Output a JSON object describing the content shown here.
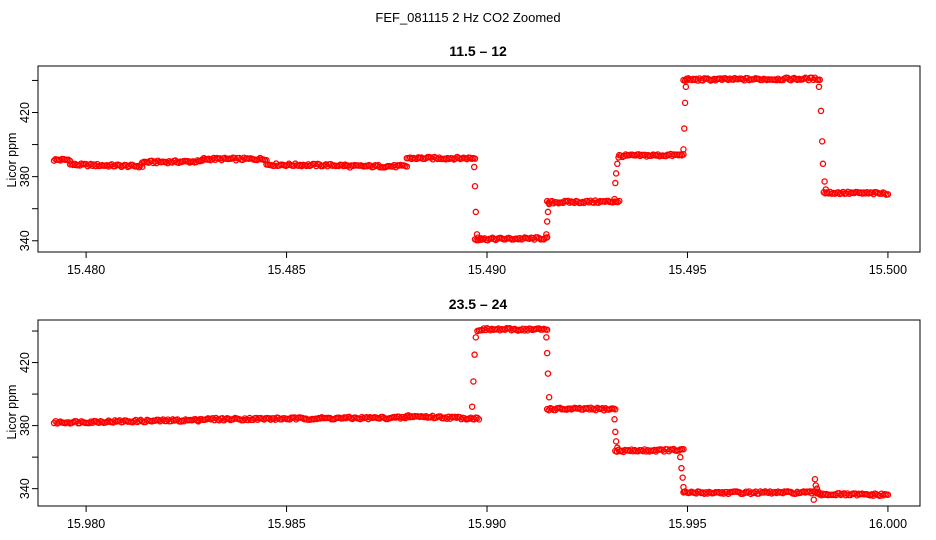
{
  "figure": {
    "title": "FEF_081115  2 Hz CO2 Zoomed"
  },
  "colors": {
    "points": "#ff0000",
    "axes": "#000000",
    "background": "#ffffff"
  },
  "chart_data": [
    {
      "type": "scatter",
      "title": "11.5 – 12",
      "xlabel": "",
      "ylabel": "Licor ppm",
      "xlim": [
        15.4788,
        15.5008
      ],
      "ylim": [
        333,
        449
      ],
      "xticks": [
        15.48,
        15.485,
        15.49,
        15.495,
        15.5
      ],
      "xtick_labels": [
        "15.480",
        "15.485",
        "15.490",
        "15.495",
        "15.500"
      ],
      "yticks": [
        340,
        360,
        380,
        400,
        420,
        440
      ],
      "ytick_labels": [
        "340",
        "",
        "380",
        "",
        "420",
        ""
      ],
      "grid": false,
      "marker": "open-circle",
      "series": [
        {
          "segments": [
            {
              "x": [
                15.4792,
                15.4796
              ],
              "y": [
                390.5,
                390.5
              ]
            },
            {
              "x": [
                15.4796,
                15.4814
              ],
              "y": [
                387.5,
                386.5
              ]
            },
            {
              "x": [
                15.4814,
                15.4829
              ],
              "y": [
                389.0,
                389.5
              ]
            },
            {
              "x": [
                15.4829,
                15.4845
              ],
              "y": [
                391.0,
                391.0
              ]
            },
            {
              "x": [
                15.4845,
                15.4865
              ],
              "y": [
                387.5,
                387.0
              ]
            },
            {
              "x": [
                15.4865,
                15.488
              ],
              "y": [
                386.5,
                386.5
              ]
            },
            {
              "x": [
                15.488,
                15.4897
              ],
              "y": [
                391.5,
                391.5
              ]
            },
            {
              "x": [
                15.4897,
                15.4915
              ],
              "y": [
                341.0,
                341.5
              ]
            },
            {
              "x": [
                15.4915,
                15.4933
              ],
              "y": [
                364.0,
                364.5
              ]
            },
            {
              "x": [
                15.4933,
                15.4949
              ],
              "y": [
                393.0,
                393.5
              ]
            },
            {
              "x": [
                15.4949,
                15.4983
              ],
              "y": [
                440.5,
                441.0
              ]
            },
            {
              "x": [
                15.4984,
                15.5
              ],
              "y": [
                370.0,
                369.5
              ]
            }
          ],
          "transitions": [
            {
              "x": [
                15.48968,
                15.4897,
                15.48972,
                15.48975,
                15.48978,
                15.48985
              ],
              "y": [
                386,
                374,
                358,
                344,
                342,
                341.5
              ]
            },
            {
              "x": [
                15.49148,
                15.4915,
                15.49152,
                15.49155
              ],
              "y": [
                344,
                352,
                358,
                363
              ]
            },
            {
              "x": [
                15.49318,
                15.4932,
                15.49322,
                15.49325,
                15.49328
              ],
              "y": [
                366,
                376,
                382,
                388,
                392
              ]
            },
            {
              "x": [
                15.4949,
                15.49492,
                15.49494,
                15.49496,
                15.49498
              ],
              "y": [
                397,
                410,
                426,
                436,
                440
              ]
            },
            {
              "x": [
                15.49828,
                15.49833,
                15.49836,
                15.49838,
                15.49842,
                15.49845
              ],
              "y": [
                436,
                421,
                402,
                388,
                377,
                372
              ]
            }
          ]
        }
      ]
    },
    {
      "type": "scatter",
      "title": "23.5 – 24",
      "xlabel": "",
      "ylabel": "Licor ppm",
      "xlim": [
        15.9788,
        16.0008
      ],
      "ylim": [
        329,
        447
      ],
      "xticks": [
        15.98,
        15.985,
        15.99,
        15.995,
        16.0
      ],
      "xtick_labels": [
        "15.980",
        "15.985",
        "15.990",
        "15.995",
        "16.000"
      ],
      "yticks": [
        340,
        360,
        380,
        400,
        420,
        440
      ],
      "ytick_labels": [
        "340",
        "",
        "380",
        "",
        "420",
        ""
      ],
      "grid": false,
      "marker": "open-circle",
      "series": [
        {
          "segments": [
            {
              "x": [
                15.9792,
                15.9828
              ],
              "y": [
                382.0,
                383.5
              ]
            },
            {
              "x": [
                15.9828,
                15.988
              ],
              "y": [
                384.0,
                385.0
              ]
            },
            {
              "x": [
                15.988,
                15.9898
              ],
              "y": [
                386.0,
                384.5
              ]
            },
            {
              "x": [
                15.9898,
                15.9915
              ],
              "y": [
                441.0,
                441.0
              ]
            },
            {
              "x": [
                15.9915,
                15.9932
              ],
              "y": [
                390.5,
                390.5
              ]
            },
            {
              "x": [
                15.9932,
                15.9949
              ],
              "y": [
                364.0,
                364.5
              ]
            },
            {
              "x": [
                15.9949,
                15.9983
              ],
              "y": [
                337.5,
                337.5
              ]
            },
            {
              "x": [
                15.9983,
                16.0
              ],
              "y": [
                336.5,
                336.0
              ]
            }
          ],
          "transitions": [
            {
              "x": [
                15.98963,
                15.98966,
                15.98969,
                15.98972,
                15.98976
              ],
              "y": [
                392,
                408,
                425,
                436,
                440
              ]
            },
            {
              "x": [
                15.99148,
                15.9915,
                15.99152,
                15.99155,
                15.99158
              ],
              "y": [
                436,
                426,
                413,
                398,
                391
              ]
            },
            {
              "x": [
                15.99318,
                15.9932,
                15.99322,
                15.99325
              ],
              "y": [
                384,
                376,
                370,
                366
              ]
            },
            {
              "x": [
                15.99482,
                15.99485,
                15.99488,
                15.9949,
                15.99493
              ],
              "y": [
                360,
                353,
                347,
                341,
                338
              ]
            },
            {
              "x": [
                15.99815,
                15.99818,
                15.9982,
                15.99823,
                15.99826
              ],
              "y": [
                333,
                346,
                342,
                340,
                338
              ]
            }
          ]
        }
      ]
    }
  ]
}
